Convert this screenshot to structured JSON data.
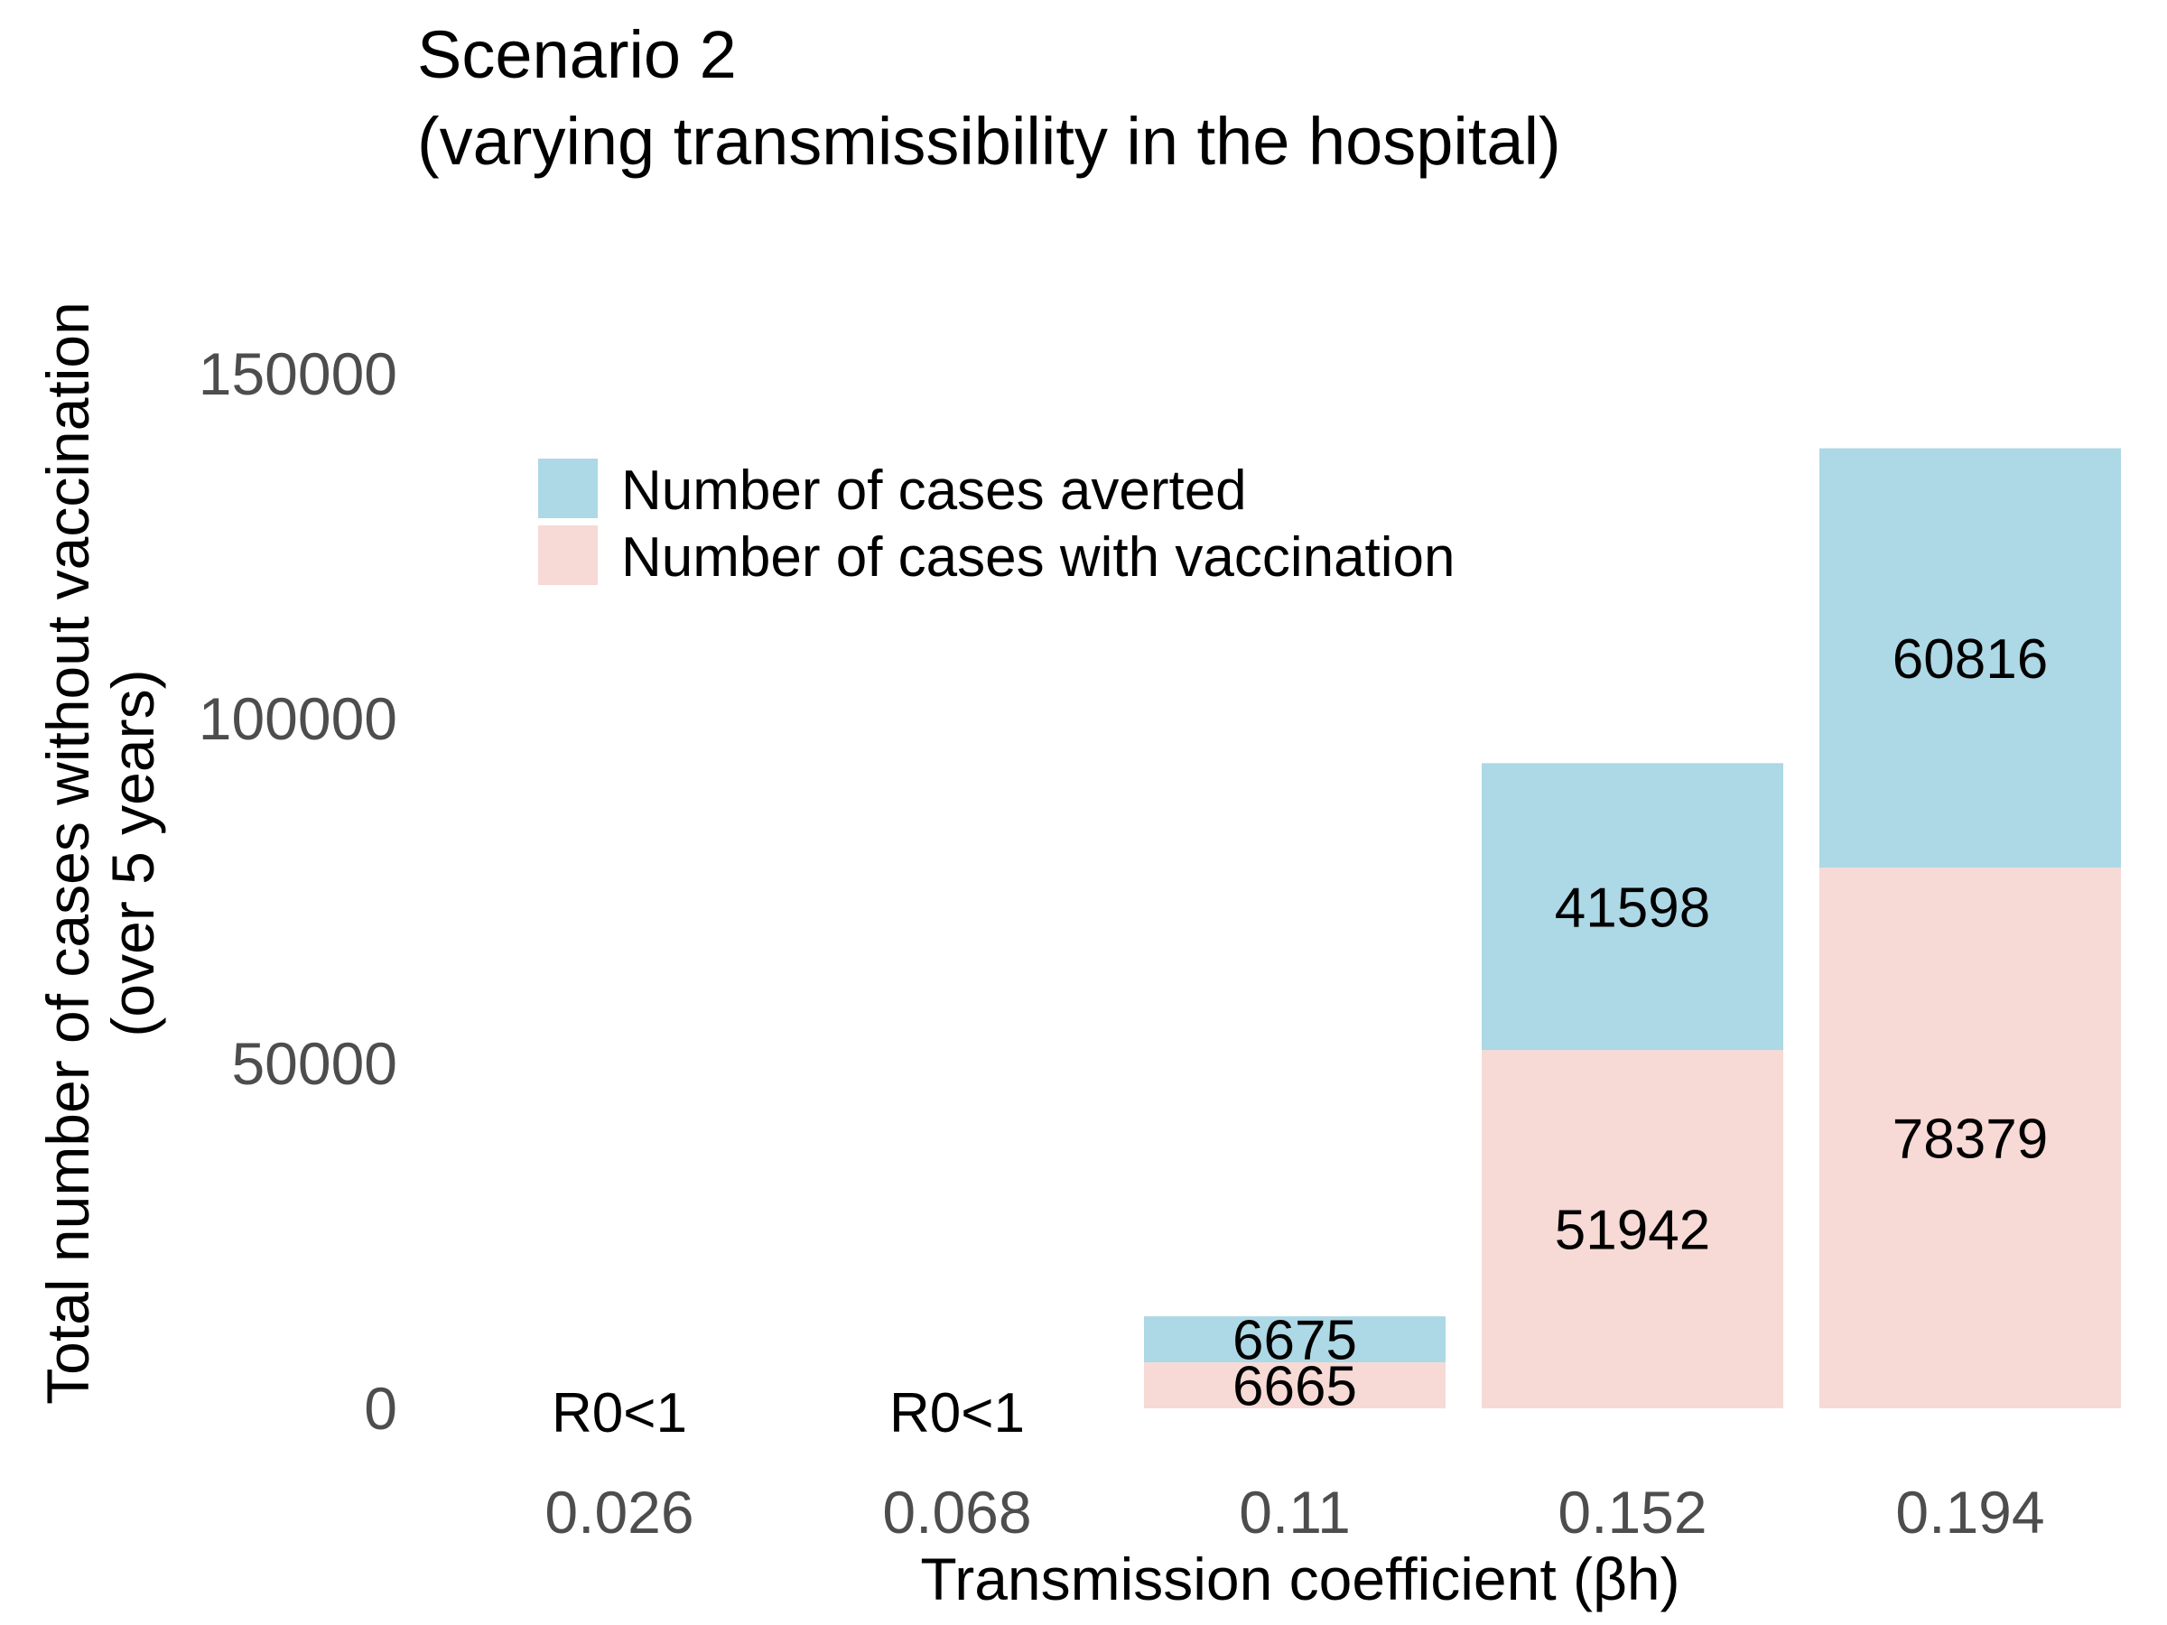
{
  "chart_data": {
    "type": "bar",
    "stacked": true,
    "title": [
      "Scenario 2",
      "(varying transmissibility in the hospital)"
    ],
    "xlabel": "Transmission coefficient (βh)",
    "ylabel": [
      "Total number of cases without vaccination",
      "(over 5 years)"
    ],
    "categories": [
      "0.026",
      "0.068",
      "0.11",
      "0.152",
      "0.194"
    ],
    "series": [
      {
        "name": "Number of cases with vaccination",
        "color": "#f7d9d5",
        "values": [
          0,
          0,
          6665,
          51942,
          78379
        ],
        "labels": [
          "",
          "",
          "6665",
          "51942",
          "78379"
        ]
      },
      {
        "name": "Number of cases averted",
        "color": "#add8e6",
        "values": [
          0,
          0,
          6675,
          41598,
          60816
        ],
        "labels": [
          "",
          "",
          "6675",
          "41598",
          "60816"
        ]
      }
    ],
    "category_notes": [
      "R0<1",
      "R0<1",
      "",
      "",
      ""
    ],
    "yticks": [
      0,
      50000,
      100000,
      150000
    ],
    "ylim": [
      0,
      150000
    ],
    "grid": false,
    "legend_position": "top-left"
  }
}
